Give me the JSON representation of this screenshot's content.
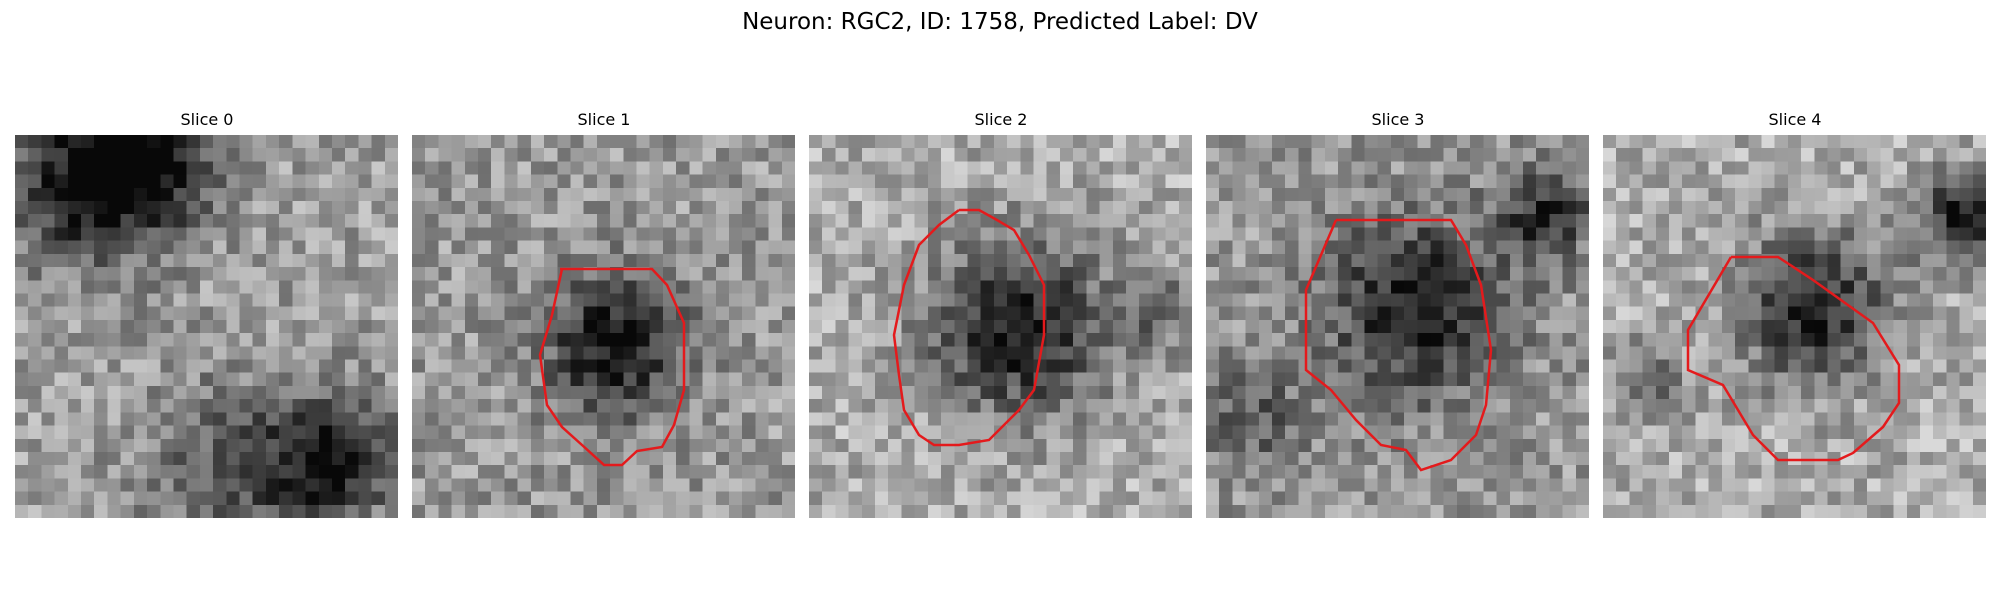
{
  "figure": {
    "title": "Neuron: RGC2, ID: 1758, Predicted Label: DV"
  },
  "panels": [
    {
      "title": "Slice 0",
      "has_contour": false
    },
    {
      "title": "Slice 1",
      "has_contour": true
    },
    {
      "title": "Slice 2",
      "has_contour": true
    },
    {
      "title": "Slice 3",
      "has_contour": true
    },
    {
      "title": "Slice 4",
      "has_contour": true
    }
  ],
  "colors": {
    "contour": "#e41a1c",
    "background": "#ffffff"
  },
  "image": {
    "colormap": "grayscale",
    "grid": "29x29 pixels"
  }
}
